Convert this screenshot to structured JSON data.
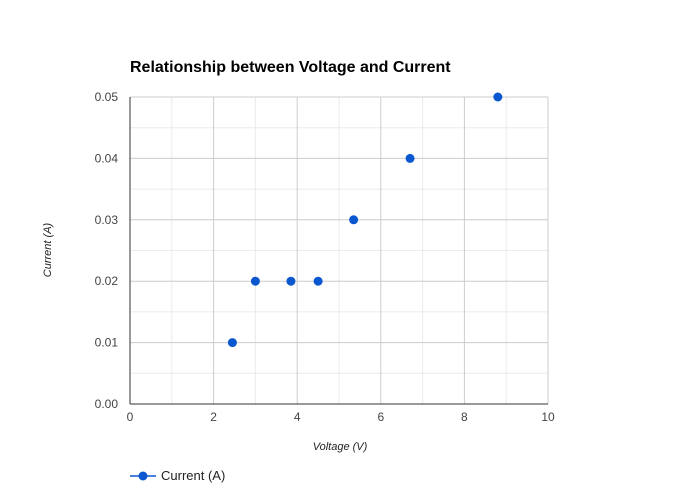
{
  "chart_data": {
    "type": "scatter",
    "title": "Relationship between Voltage and Current",
    "xlabel": "Voltage (V)",
    "ylabel": "Current (A)",
    "xlim": [
      0,
      10
    ],
    "ylim": [
      0,
      0.05
    ],
    "x_ticks": [
      "0",
      "2",
      "4",
      "6",
      "8",
      "10"
    ],
    "y_ticks": [
      "0.00",
      "0.01",
      "0.02",
      "0.03",
      "0.04",
      "0.05"
    ],
    "grid": true,
    "legend_position": "bottom",
    "series": [
      {
        "name": "Current (A)",
        "color": "#0b57d0",
        "points": [
          {
            "x": 2.45,
            "y": 0.01
          },
          {
            "x": 3.0,
            "y": 0.02
          },
          {
            "x": 3.85,
            "y": 0.02
          },
          {
            "x": 4.5,
            "y": 0.02
          },
          {
            "x": 5.35,
            "y": 0.03
          },
          {
            "x": 6.7,
            "y": 0.04
          },
          {
            "x": 8.8,
            "y": 0.05
          }
        ]
      }
    ]
  }
}
